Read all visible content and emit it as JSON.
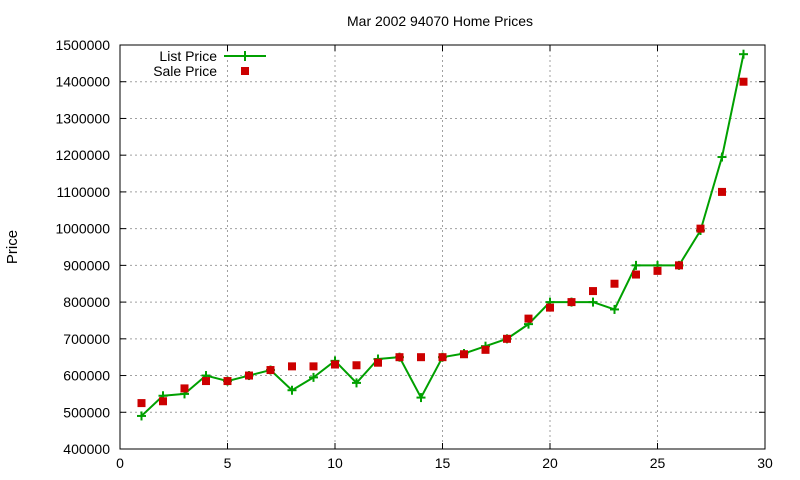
{
  "chart_data": {
    "type": "line",
    "title": "Mar 2002 94070 Home Prices",
    "xlabel": "",
    "ylabel": "Price",
    "xlim": [
      0,
      30
    ],
    "ylim": [
      400000,
      1500000
    ],
    "x_ticks": [
      "0",
      "5",
      "10",
      "15",
      "20",
      "25",
      "30"
    ],
    "y_ticks": [
      "400000",
      "500000",
      "600000",
      "700000",
      "800000",
      "900000",
      "1000000",
      "1100000",
      "1200000",
      "1300000",
      "1400000",
      "1500000"
    ],
    "grid": true,
    "legend_position": "top-left",
    "series": [
      {
        "name": "List Price",
        "style": "line-with-plus-markers",
        "color": "#00a000",
        "x": [
          1,
          2,
          3,
          4,
          5,
          6,
          7,
          8,
          9,
          10,
          11,
          12,
          13,
          14,
          15,
          16,
          17,
          18,
          19,
          20,
          21,
          22,
          23,
          24,
          25,
          26,
          27,
          28,
          29
        ],
        "y": [
          490000,
          545000,
          550000,
          600000,
          585000,
          600000,
          615000,
          560000,
          595000,
          640000,
          580000,
          645000,
          650000,
          540000,
          650000,
          660000,
          680000,
          700000,
          740000,
          800000,
          800000,
          800000,
          780000,
          900000,
          900000,
          900000,
          995000,
          1195000,
          1475000
        ]
      },
      {
        "name": "Sale Price",
        "style": "square-markers",
        "color": "#cc0000",
        "x": [
          1,
          2,
          3,
          4,
          5,
          6,
          7,
          8,
          9,
          10,
          11,
          12,
          13,
          14,
          15,
          16,
          17,
          18,
          19,
          20,
          21,
          22,
          23,
          24,
          25,
          26,
          27,
          28,
          29
        ],
        "y": [
          525000,
          530000,
          565000,
          585000,
          585000,
          600000,
          615000,
          625000,
          625000,
          630000,
          628000,
          635000,
          650000,
          650000,
          650000,
          658000,
          670000,
          700000,
          755000,
          785000,
          800000,
          830000,
          850000,
          875000,
          885000,
          900000,
          1000000,
          1100000,
          1400000
        ]
      }
    ]
  }
}
